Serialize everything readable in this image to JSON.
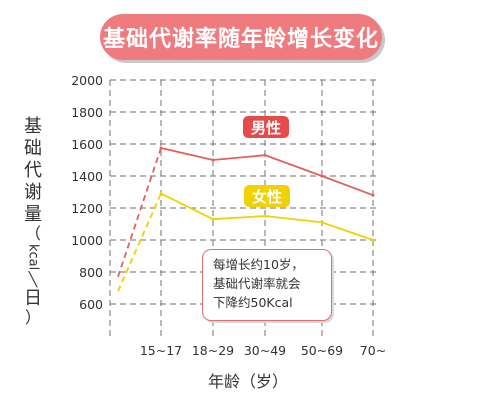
{
  "title": "基础代谢率随年龄增长变化",
  "y_axis_label": {
    "chars": [
      "基",
      "础",
      "代",
      "谢",
      "量"
    ],
    "unit_open": "（",
    "unit_kcal": "kcal",
    "unit_slash": "╲",
    "unit_day": "日",
    "unit_close": "）"
  },
  "x_axis_label": "年龄（岁）",
  "note": {
    "line1": "每增长约10岁，",
    "line2": "基础代谢率就会",
    "line3": "下降约50Kcal"
  },
  "legend": {
    "male": "男性",
    "female": "女性"
  },
  "colors": {
    "male": "#e06060",
    "female": "#f2d100",
    "banner": "#ef7b7e",
    "grid": "#8a8a8a"
  },
  "chart_data": {
    "type": "line",
    "title": "基础代谢率随年龄增长变化",
    "xlabel": "年龄（岁）",
    "ylabel": "基础代谢量（kcal/日）",
    "categories": [
      "15~17",
      "18~29",
      "30~49",
      "50~69",
      "70~"
    ],
    "yticks": [
      600,
      800,
      1000,
      1200,
      1400,
      1600,
      1800,
      2000
    ],
    "ylim": [
      600,
      2000
    ],
    "grid": true,
    "series": [
      {
        "name": "男性",
        "color": "#e06060",
        "values": [
          1575,
          1500,
          1530,
          1400,
          1280
        ],
        "start": 770
      },
      {
        "name": "女性",
        "color": "#f2d100",
        "values": [
          1290,
          1130,
          1150,
          1110,
          1000
        ],
        "start": 680
      }
    ]
  }
}
